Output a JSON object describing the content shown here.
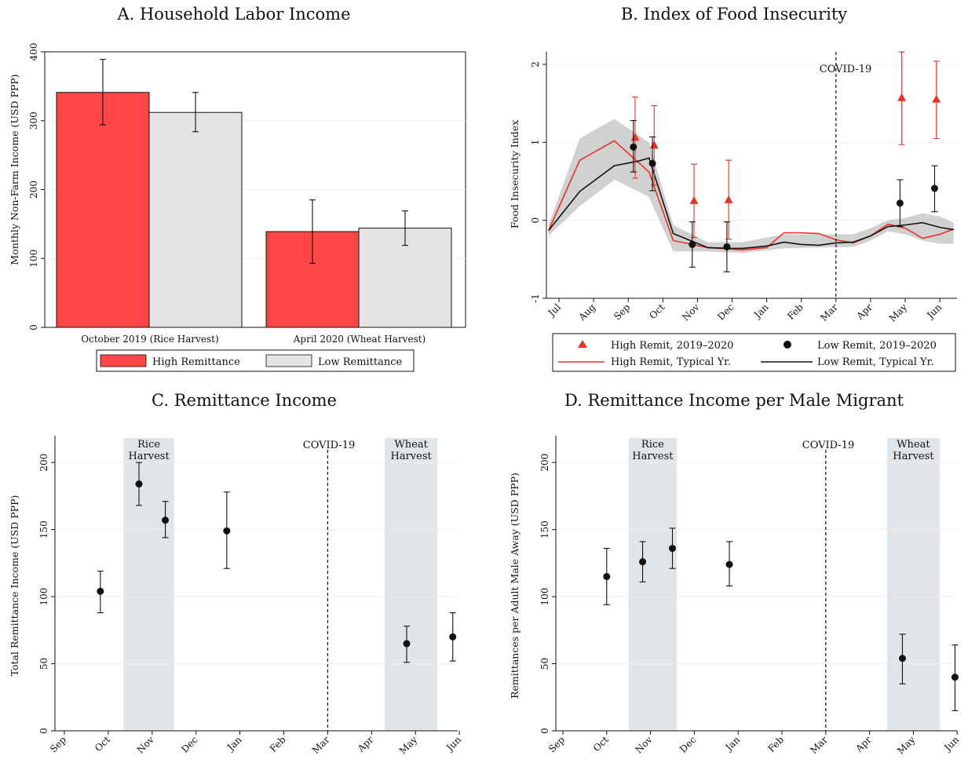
{
  "chart_data": [
    {
      "panel": "A",
      "type": "bar",
      "title": "A. Household Labor Income",
      "ylabel": "Monthly Non-Farm Income (USD PPP)",
      "ylim": [
        0,
        400
      ],
      "yticks": [
        0,
        100,
        200,
        300,
        400
      ],
      "categories": [
        "October 2019 (Rice Harvest)",
        "April 2020 (Wheat Harvest)"
      ],
      "series": [
        {
          "name": "High Remittance",
          "values": [
            341,
            139
          ],
          "ci_low": [
            294,
            93
          ],
          "ci_high": [
            389,
            185
          ],
          "color": "#ff4545"
        },
        {
          "name": "Low Remittance",
          "values": [
            312,
            144
          ],
          "ci_low": [
            284,
            119
          ],
          "ci_high": [
            341,
            169
          ],
          "color": "#e4e4e4"
        }
      ],
      "legend_position": "bottom"
    },
    {
      "panel": "B",
      "type": "line",
      "title": "B. Index of Food Insecurity",
      "ylabel": "Food Insecurity Index",
      "ylim": [
        -1,
        2
      ],
      "yticks": [
        -1,
        0,
        1,
        2
      ],
      "xticks": [
        "Jul",
        "Aug",
        "Sep",
        "Oct",
        "Nov",
        "Dec",
        "Jan",
        "Feb",
        "Mar",
        "Apr",
        "May",
        "Jun"
      ],
      "annotation": "COVID-19",
      "vline_at_month": 8,
      "typical_series": [
        {
          "name": "High Remit, Typical Yr.",
          "color": "#e8332a",
          "x": [
            -0.3,
            0.6,
            1.6,
            2.6,
            3.3,
            4.3,
            5.0,
            5.3,
            6.0,
            6.5,
            7.0,
            7.5,
            8.0,
            8.5,
            9.0,
            9.5,
            10.0,
            10.5,
            11.0,
            11.4
          ],
          "y": [
            -0.13,
            0.77,
            1.02,
            0.62,
            -0.26,
            -0.35,
            -0.37,
            -0.38,
            -0.35,
            -0.16,
            -0.16,
            -0.17,
            -0.25,
            -0.29,
            -0.2,
            -0.05,
            -0.1,
            -0.23,
            -0.18,
            -0.11
          ]
        },
        {
          "name": "Low Remit, Typical Yr.",
          "color": "#111111",
          "x": [
            -0.3,
            0.6,
            1.6,
            2.3,
            2.6,
            3.3,
            4.3,
            5.0,
            5.3,
            6.0,
            6.5,
            7.0,
            7.5,
            8.0,
            8.5,
            9.0,
            9.5,
            10.0,
            10.5,
            11.0,
            11.4
          ],
          "y": [
            -0.13,
            0.37,
            0.7,
            0.76,
            0.8,
            -0.17,
            -0.35,
            -0.36,
            -0.36,
            -0.33,
            -0.28,
            -0.31,
            -0.32,
            -0.29,
            -0.28,
            -0.2,
            -0.08,
            -0.06,
            -0.03,
            -0.09,
            -0.12
          ]
        }
      ],
      "band": {
        "x": [
          -0.3,
          0.6,
          1.6,
          2.6,
          3.3,
          4.3,
          5.3,
          6.5,
          7.5,
          8.5,
          9.0,
          9.5,
          10.0,
          10.5,
          11.0,
          11.4
        ],
        "low": [
          -0.2,
          0.18,
          0.52,
          0.3,
          -0.4,
          -0.4,
          -0.42,
          -0.36,
          -0.35,
          -0.34,
          -0.26,
          -0.14,
          -0.18,
          -0.26,
          -0.3,
          -0.3
        ],
        "high": [
          -0.06,
          1.05,
          1.3,
          1.0,
          -0.06,
          -0.28,
          -0.28,
          -0.18,
          -0.18,
          -0.18,
          -0.1,
          0.0,
          0.03,
          0.09,
          0.05,
          -0.03
        ]
      },
      "point_series": [
        {
          "name": "High Remit, 2019–2020",
          "marker": "triangle",
          "color": "#e8332a",
          "x": [
            2.2,
            2.75,
            3.9,
            4.9,
            9.9,
            10.9
          ],
          "y": [
            1.06,
            0.96,
            0.25,
            0.26,
            1.57,
            1.55
          ],
          "ci_low": [
            0.54,
            0.45,
            -0.22,
            -0.24,
            0.97,
            1.05
          ],
          "ci_high": [
            1.58,
            1.47,
            0.72,
            0.77,
            2.16,
            2.04
          ]
        },
        {
          "name": "Low Remit, 2019–2020",
          "marker": "circle",
          "color": "#111111",
          "x": [
            2.15,
            2.7,
            3.85,
            4.85,
            9.85,
            10.85
          ],
          "y": [
            0.94,
            0.73,
            -0.31,
            -0.34,
            0.22,
            0.41
          ],
          "ci_low": [
            0.62,
            0.38,
            -0.6,
            -0.66,
            -0.08,
            0.11
          ],
          "ci_high": [
            1.28,
            1.07,
            -0.02,
            -0.02,
            0.52,
            0.7
          ]
        }
      ],
      "legend_position": "bottom"
    },
    {
      "panel": "C",
      "type": "scatter",
      "title": "C. Remittance Income",
      "ylabel": "Total Remittance Income (USD PPP)",
      "ylim": [
        0,
        220
      ],
      "yticks": [
        0,
        50,
        100,
        150,
        200
      ],
      "xticks": [
        "Sep",
        "Oct",
        "Nov",
        "Dec",
        "Jan",
        "Feb",
        "Mar",
        "Apr",
        "May",
        "Jun"
      ],
      "annotation": "COVID-19",
      "vline_at_month": 6,
      "shaded": [
        {
          "label": [
            "Rice",
            "Harvest"
          ],
          "from": 1.35,
          "to": 2.5
        },
        {
          "label": [
            "Wheat",
            "Harvest"
          ],
          "from": 7.3,
          "to": 8.5
        }
      ],
      "x": [
        0.82,
        1.7,
        2.3,
        3.7,
        7.8,
        8.85
      ],
      "y": [
        104,
        184,
        157,
        149,
        65,
        70
      ],
      "ci_low": [
        88,
        168,
        144,
        121,
        51,
        52
      ],
      "ci_high": [
        119,
        200,
        171,
        178,
        78,
        88
      ]
    },
    {
      "panel": "D",
      "type": "scatter",
      "title": "D. Remittance Income per Male Migrant",
      "ylabel": "Remittances per Adult Male Away (USD PPP)",
      "ylim": [
        0,
        220
      ],
      "yticks": [
        0,
        50,
        100,
        150,
        200
      ],
      "xticks": [
        "Sep",
        "Oct",
        "Nov",
        "Dec",
        "Jan",
        "Feb",
        "Mar",
        "Apr",
        "May",
        "Jun"
      ],
      "annotation": "COVID-19",
      "vline_at_month": 6,
      "shaded": [
        {
          "label": [
            "Rice",
            "Harvest"
          ],
          "from": 1.5,
          "to": 2.6
        },
        {
          "label": [
            "Wheat",
            "Harvest"
          ],
          "from": 7.4,
          "to": 8.6
        }
      ],
      "x": [
        1.0,
        1.82,
        2.5,
        3.8,
        7.75,
        8.95
      ],
      "y": [
        115,
        126,
        136,
        124,
        54,
        40
      ],
      "ci_low": [
        94,
        111,
        121,
        108,
        35,
        15
      ],
      "ci_high": [
        136,
        141,
        151,
        141,
        72,
        64
      ]
    }
  ]
}
